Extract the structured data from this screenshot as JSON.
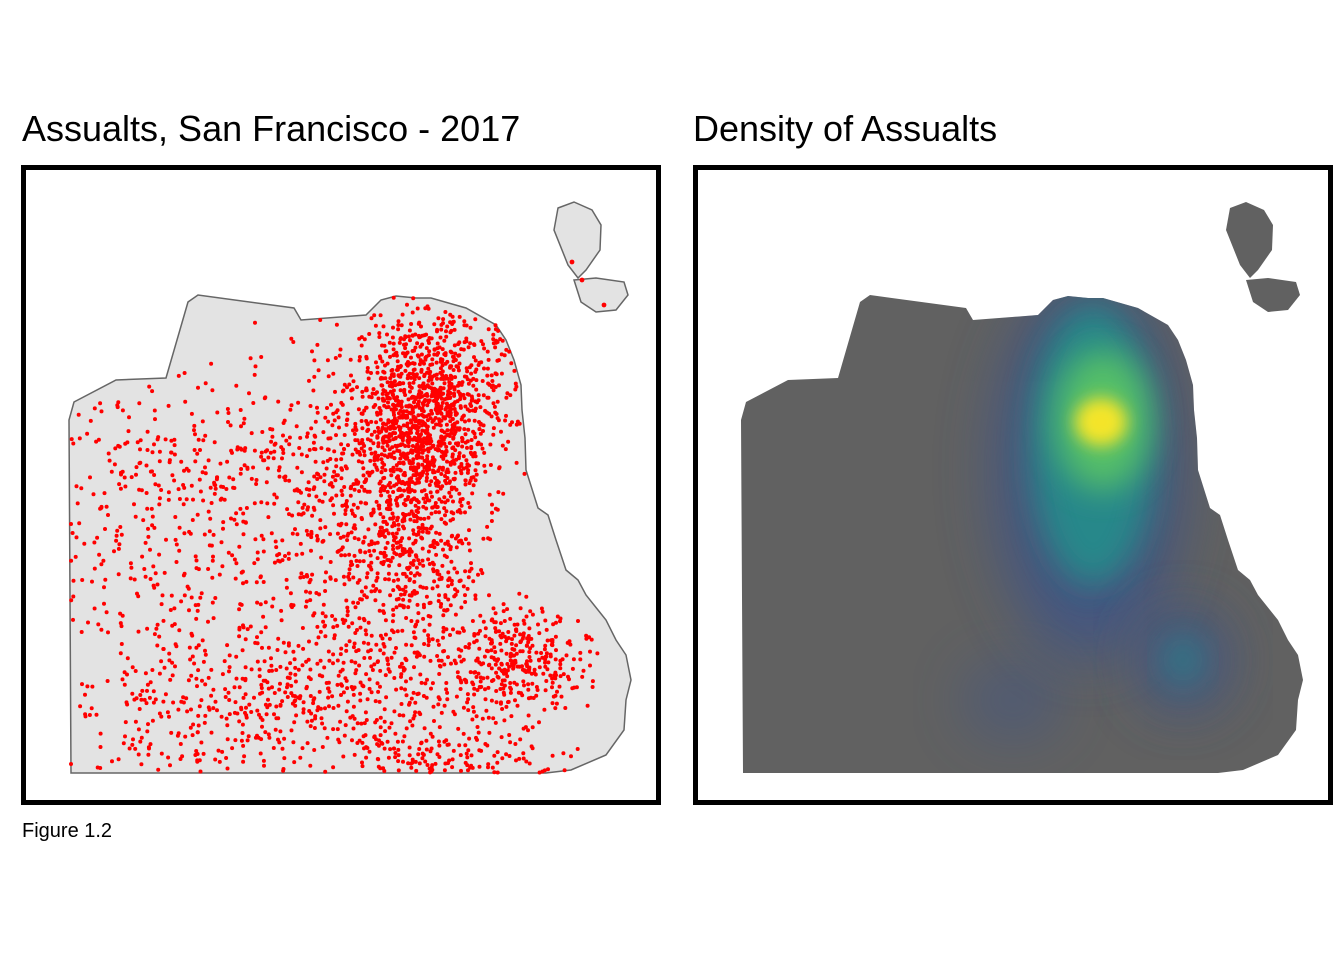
{
  "panels": {
    "left": {
      "title": "Assualts, San Francisco - 2017"
    },
    "right": {
      "title": "Density of Assualts"
    }
  },
  "caption": "Figure 1.2",
  "style": {
    "land_fill": "#e3e3e3",
    "land_stroke": "#666666",
    "point_color": "#ff0000",
    "density_base": "#616161",
    "density_low": "#3b528b",
    "density_mid": "#21918c",
    "density_high": "#5ec962",
    "density_peak": "#fde725"
  },
  "legend": "none"
}
